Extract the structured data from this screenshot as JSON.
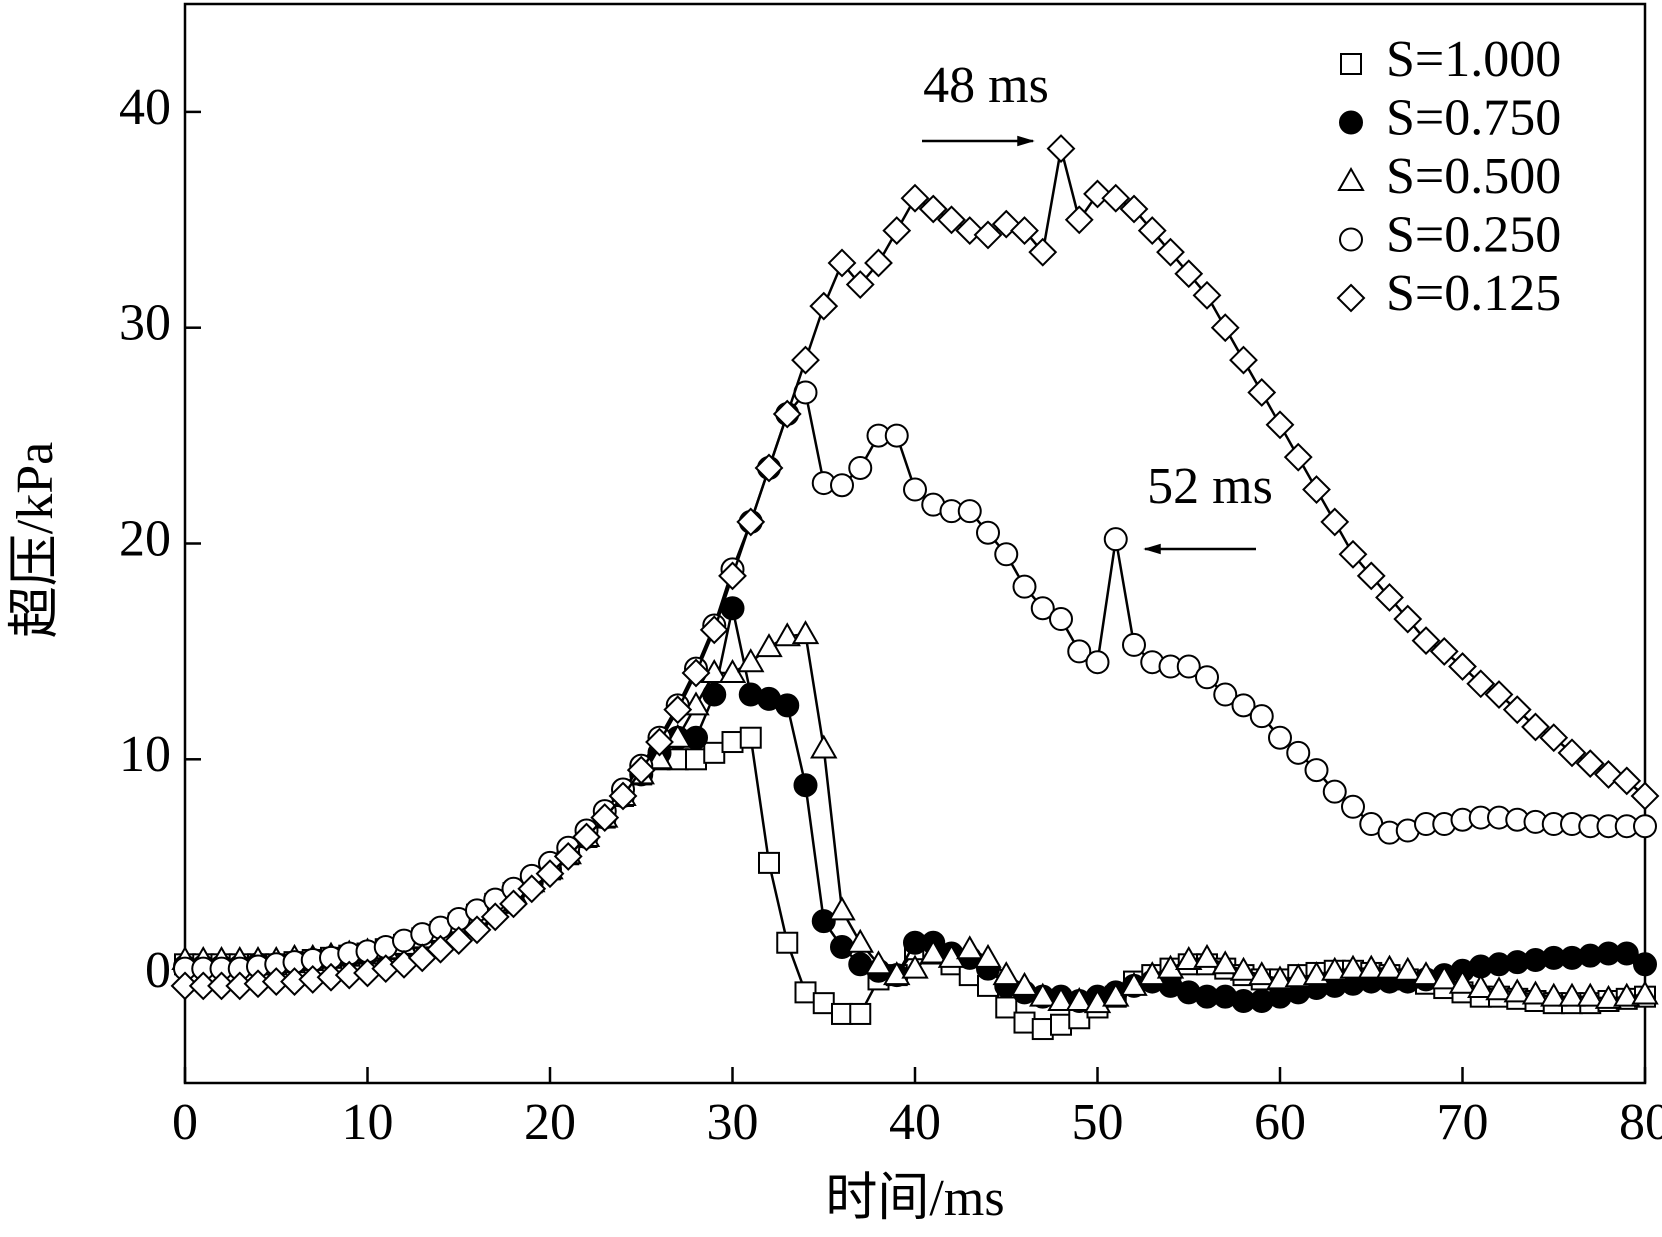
{
  "chart_data": {
    "type": "scatter",
    "xlabel": "时间/ms",
    "ylabel": "超压/kPa",
    "xlim": [
      0,
      80
    ],
    "xticks": [
      0,
      10,
      20,
      30,
      40,
      50,
      60,
      70,
      80
    ],
    "ylim": [
      -5,
      45
    ],
    "yticks": [
      0,
      10,
      20,
      30,
      40
    ],
    "legend": "upper right",
    "annotations": [
      "48 ms",
      "52 ms"
    ],
    "x": [
      0,
      1,
      2,
      3,
      4,
      5,
      6,
      7,
      8,
      9,
      10,
      11,
      12,
      13,
      14,
      15,
      16,
      17,
      18,
      19,
      20,
      21,
      22,
      23,
      24,
      25,
      26,
      27,
      28,
      29,
      30,
      31,
      32,
      33,
      34,
      35,
      36,
      37,
      38,
      39,
      40,
      41,
      42,
      43,
      44,
      45,
      46,
      47,
      48,
      49,
      50,
      51,
      52,
      53,
      54,
      55,
      56,
      57,
      58,
      59,
      60,
      61,
      62,
      63,
      64,
      65,
      66,
      67,
      68,
      69,
      70,
      71,
      72,
      73,
      74,
      75,
      76,
      77,
      78,
      79,
      80
    ],
    "series": [
      {
        "name": "S=1.000",
        "color": "#000000",
        "marker": "square",
        "filled": false,
        "values": [
          0.5,
          0.5,
          0.5,
          0.5,
          0.5,
          0.5,
          0.6,
          0.7,
          0.8,
          0.9,
          1,
          1.2,
          1.4,
          1.7,
          2,
          2.4,
          2.8,
          3.3,
          3.8,
          4.3,
          4.9,
          5.6,
          6.4,
          7.3,
          8.3,
          9.3,
          10,
          10,
          10,
          10.3,
          10.8,
          11,
          5.2,
          1.5,
          -0.8,
          -1.3,
          -1.8,
          -1.8,
          -0.2,
          0,
          1.2,
          1,
          0.5,
          0,
          -0.5,
          -1.5,
          -2.2,
          -2.5,
          -2.3,
          -2,
          -1.5,
          -1,
          -0.3,
          0,
          0.3,
          0.5,
          0.5,
          0.3,
          0,
          -0.2,
          -0.2,
          0,
          0.1,
          0.2,
          0.2,
          0.1,
          0,
          -0.2,
          -0.4,
          -0.6,
          -0.8,
          -1,
          -1,
          -1.1,
          -1.2,
          -1.3,
          -1.3,
          -1.3,
          -1.2,
          -1.1,
          -1
        ]
      },
      {
        "name": "S=0.750",
        "color": "#000000",
        "marker": "circle",
        "filled": true,
        "values": [
          0.4,
          0.4,
          0.4,
          0.4,
          0.5,
          0.5,
          0.6,
          0.7,
          0.8,
          0.9,
          1,
          1.2,
          1.4,
          1.7,
          2,
          2.4,
          2.8,
          3.3,
          3.8,
          4.3,
          4.9,
          5.6,
          6.4,
          7.3,
          8.3,
          9.3,
          10.3,
          11,
          11,
          13,
          17,
          13,
          12.8,
          12.5,
          8.8,
          2.5,
          1.3,
          0.5,
          0.2,
          0,
          1.5,
          1.5,
          1,
          0.8,
          0.3,
          -0.5,
          -0.8,
          -1,
          -1,
          -1.2,
          -1,
          -0.8,
          -0.5,
          -0.3,
          -0.5,
          -0.8,
          -1,
          -1,
          -1.2,
          -1.2,
          -1,
          -0.8,
          -0.6,
          -0.5,
          -0.4,
          -0.3,
          -0.3,
          -0.3,
          -0.2,
          0,
          0.2,
          0.4,
          0.5,
          0.6,
          0.7,
          0.8,
          0.8,
          0.9,
          1,
          1,
          0.5
        ]
      },
      {
        "name": "S=0.500",
        "color": "#000000",
        "marker": "triangle",
        "filled": false,
        "values": [
          0.7,
          0.7,
          0.7,
          0.7,
          0.7,
          0.7,
          0.8,
          0.8,
          0.9,
          1,
          1.1,
          1.2,
          1.4,
          1.7,
          2,
          2.4,
          2.8,
          3.3,
          3.8,
          4.3,
          4.9,
          5.6,
          6.4,
          7.3,
          8.3,
          9.3,
          10,
          11,
          12.5,
          14,
          14,
          14.5,
          15.2,
          15.7,
          15.8,
          10.5,
          3,
          1.5,
          0.5,
          0,
          0.3,
          1,
          0.8,
          1.2,
          0.8,
          0,
          -0.5,
          -1,
          -1.2,
          -1.2,
          -1.3,
          -1,
          -0.5,
          0,
          0.3,
          0.7,
          0.8,
          0.5,
          0.2,
          0,
          -0.2,
          -0.1,
          0,
          0.2,
          0.3,
          0.3,
          0.3,
          0.2,
          0,
          -0.2,
          -0.4,
          -0.6,
          -0.7,
          -0.8,
          -0.9,
          -1,
          -1,
          -1,
          -1.1,
          -1,
          -0.9
        ]
      },
      {
        "name": "S=0.250",
        "color": "#000000",
        "marker": "circle",
        "filled": false,
        "values": [
          0.3,
          0.3,
          0.3,
          0.3,
          0.4,
          0.5,
          0.6,
          0.7,
          0.8,
          1,
          1.1,
          1.3,
          1.6,
          1.9,
          2.2,
          2.6,
          3,
          3.5,
          4,
          4.6,
          5.2,
          5.9,
          6.7,
          7.6,
          8.6,
          9.7,
          11,
          12.5,
          14.2,
          16.2,
          18.8,
          21,
          23.5,
          26,
          27,
          22.8,
          22.7,
          23.5,
          25,
          25,
          22.5,
          21.8,
          21.5,
          21.5,
          20.5,
          19.5,
          18,
          17,
          16.5,
          15,
          14.5,
          20.2,
          15.3,
          14.5,
          14.3,
          14.3,
          13.8,
          13,
          12.5,
          12,
          11,
          10.3,
          9.5,
          8.5,
          7.8,
          7,
          6.6,
          6.7,
          7,
          7,
          7.2,
          7.3,
          7.3,
          7.2,
          7.1,
          7,
          7,
          6.9,
          6.9,
          6.9,
          6.9
        ]
      },
      {
        "name": "S=0.125",
        "color": "#000000",
        "marker": "diamond",
        "filled": false,
        "values": [
          -0.5,
          -0.5,
          -0.5,
          -0.5,
          -0.4,
          -0.3,
          -0.3,
          -0.2,
          -0.1,
          0,
          0.1,
          0.3,
          0.5,
          0.8,
          1.2,
          1.6,
          2.1,
          2.7,
          3.3,
          4,
          4.7,
          5.5,
          6.4,
          7.3,
          8.3,
          9.5,
          10.8,
          12.3,
          14,
          16,
          18.5,
          21,
          23.5,
          26,
          28.5,
          31,
          33,
          32,
          33,
          34.5,
          36,
          35.5,
          35,
          34.5,
          34.3,
          34.8,
          34.5,
          33.5,
          38.3,
          35,
          36.2,
          36,
          35.5,
          34.5,
          33.5,
          32.5,
          31.5,
          30,
          28.5,
          27,
          25.5,
          24,
          22.5,
          21,
          19.5,
          18.5,
          17.5,
          16.5,
          15.5,
          15,
          14.3,
          13.5,
          13,
          12.3,
          11.5,
          11,
          10.3,
          9.8,
          9.3,
          9,
          8.3
        ]
      }
    ]
  }
}
